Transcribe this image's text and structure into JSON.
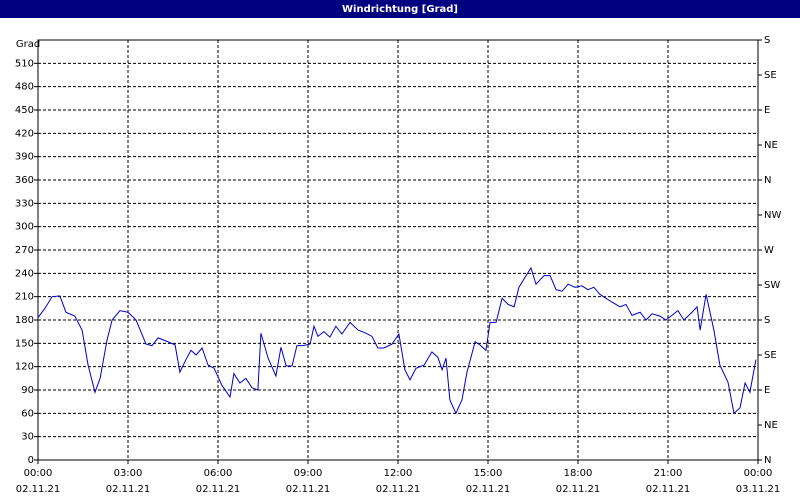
{
  "chart_data": {
    "type": "line",
    "title": "Windrichtung [Grad]",
    "y_label": "Grad",
    "xlim": [
      0,
      24
    ],
    "xticks": [
      {
        "value": 0,
        "label": "00:00",
        "date": "02.11.21"
      },
      {
        "value": 3,
        "label": "03:00",
        "date": "02.11.21"
      },
      {
        "value": 6,
        "label": "06:00",
        "date": "02.11.21"
      },
      {
        "value": 9,
        "label": "09:00",
        "date": "02.11.21"
      },
      {
        "value": 12,
        "label": "12:00",
        "date": "02.11.21"
      },
      {
        "value": 15,
        "label": "15:00",
        "date": "02.11.21"
      },
      {
        "value": 18,
        "label": "18:00",
        "date": "02.11.21"
      },
      {
        "value": 21,
        "label": "21:00",
        "date": "02.11.21"
      },
      {
        "value": 24,
        "label": "00:00",
        "date": "03.11.21"
      }
    ],
    "ylim": [
      0,
      540
    ],
    "yticks": [
      0,
      30,
      60,
      90,
      120,
      150,
      180,
      210,
      240,
      270,
      300,
      330,
      360,
      390,
      420,
      450,
      480,
      510
    ],
    "y2lim": [
      0,
      540
    ],
    "y2ticks": [
      {
        "value": 0,
        "label": "N"
      },
      {
        "value": 45,
        "label": "NE"
      },
      {
        "value": 90,
        "label": "E"
      },
      {
        "value": 135,
        "label": "SE"
      },
      {
        "value": 180,
        "label": "S"
      },
      {
        "value": 225,
        "label": "SW"
      },
      {
        "value": 270,
        "label": "W"
      },
      {
        "value": 315,
        "label": "NW"
      },
      {
        "value": 360,
        "label": "N"
      },
      {
        "value": 405,
        "label": "NE"
      },
      {
        "value": 450,
        "label": "E"
      },
      {
        "value": 495,
        "label": "SE"
      },
      {
        "value": 540,
        "label": "S"
      }
    ],
    "grid": true,
    "series": [
      {
        "color": "#0000c8",
        "x": [
          0,
          0.23,
          0.47,
          0.73,
          0.93,
          1.23,
          1.47,
          1.67,
          1.9,
          2.07,
          2.3,
          2.47,
          2.73,
          3,
          3.27,
          3.6,
          3.8,
          4,
          4.27,
          4.57,
          4.73,
          4.93,
          5.1,
          5.27,
          5.47,
          5.67,
          5.87,
          6.13,
          6.4,
          6.53,
          6.73,
          6.93,
          7.13,
          7.33,
          7.43,
          7.67,
          7.93,
          8.1,
          8.27,
          8.47,
          8.63,
          8.83,
          9.07,
          9.2,
          9.33,
          9.53,
          9.73,
          9.93,
          10.13,
          10.4,
          10.67,
          10.93,
          11.13,
          11.33,
          11.53,
          11.8,
          12.03,
          12.23,
          12.4,
          12.6,
          12.87,
          13.13,
          13.33,
          13.47,
          13.6,
          13.73,
          13.93,
          14.13,
          14.3,
          14.57,
          14.73,
          14.93,
          15.07,
          15.27,
          15.47,
          15.67,
          15.87,
          16.03,
          16.27,
          16.43,
          16.6,
          16.87,
          17.07,
          17.27,
          17.47,
          17.67,
          17.9,
          18.13,
          18.33,
          18.53,
          18.73,
          18.93,
          19.13,
          19.4,
          19.6,
          19.8,
          20.07,
          20.27,
          20.47,
          20.73,
          20.93,
          21.13,
          21.33,
          21.53,
          21.8,
          21.97,
          22.07,
          22.27,
          22.53,
          22.73,
          23,
          23.2,
          23.4,
          23.57,
          23.73,
          23.93
        ],
        "values": [
          183,
          195,
          210,
          211,
          190,
          185,
          167,
          122,
          87,
          105,
          154,
          180,
          192,
          190,
          180,
          149,
          147,
          157,
          153,
          148,
          113,
          129,
          141,
          135,
          144,
          122,
          118,
          96,
          81,
          111,
          99,
          105,
          93,
          90,
          163,
          131,
          108,
          145,
          121,
          121,
          147,
          147,
          149,
          172,
          159,
          165,
          158,
          172,
          162,
          177,
          167,
          163,
          159,
          144,
          144,
          149,
          162,
          116,
          103,
          118,
          122,
          139,
          132,
          116,
          131,
          77,
          60,
          77,
          113,
          152,
          148,
          141,
          177,
          177,
          208,
          200,
          197,
          222,
          237,
          247,
          226,
          237,
          237,
          219,
          217,
          226,
          222,
          224,
          219,
          222,
          213,
          208,
          203,
          197,
          200,
          186,
          190,
          180,
          188,
          185,
          180,
          186,
          192,
          180,
          190,
          197,
          167,
          213,
          167,
          122,
          100,
          60,
          67,
          99,
          87,
          129
        ]
      }
    ]
  }
}
